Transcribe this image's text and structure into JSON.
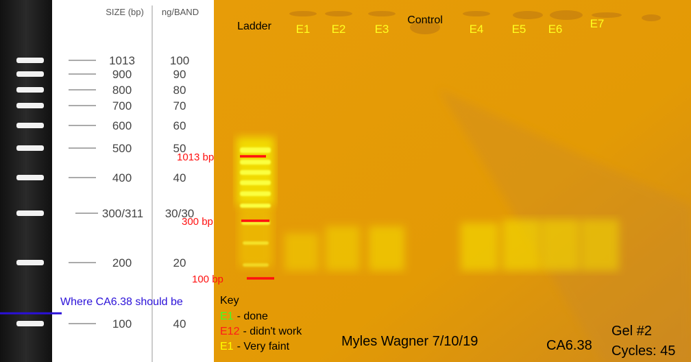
{
  "ladder": {
    "header": {
      "size": "SIZE (bp)",
      "ng": "ng/BAND"
    },
    "rows": [
      {
        "size": "1013",
        "ng": "100"
      },
      {
        "size": "900",
        "ng": "90"
      },
      {
        "size": "800",
        "ng": "80"
      },
      {
        "size": "700",
        "ng": "70"
      },
      {
        "size": "600",
        "ng": "60"
      },
      {
        "size": "500",
        "ng": "50"
      },
      {
        "size": "400",
        "ng": "40"
      },
      {
        "size": "300/311",
        "ng": "30/30"
      },
      {
        "size": "200",
        "ng": "20"
      },
      {
        "size": "100",
        "ng": "40"
      }
    ]
  },
  "expected_note": "Where CA6.38 should be",
  "lanes": [
    "Ladder",
    "E1",
    "E2",
    "E3",
    "Control",
    "E4",
    "E5",
    "E6",
    "E7"
  ],
  "markers": [
    "1013 bp",
    "300 bp",
    "100 bp"
  ],
  "key": {
    "title": "Key",
    "items": [
      {
        "code": "E1",
        "text": "- done"
      },
      {
        "code": "E12",
        "text": "- didn't work"
      },
      {
        "code": "E1",
        "text": "- Very faint"
      }
    ]
  },
  "author": "Myles Wagner 7/10/19",
  "sample": "CA6.38",
  "gel": "Gel #2",
  "cycles": "Cycles: 45"
}
